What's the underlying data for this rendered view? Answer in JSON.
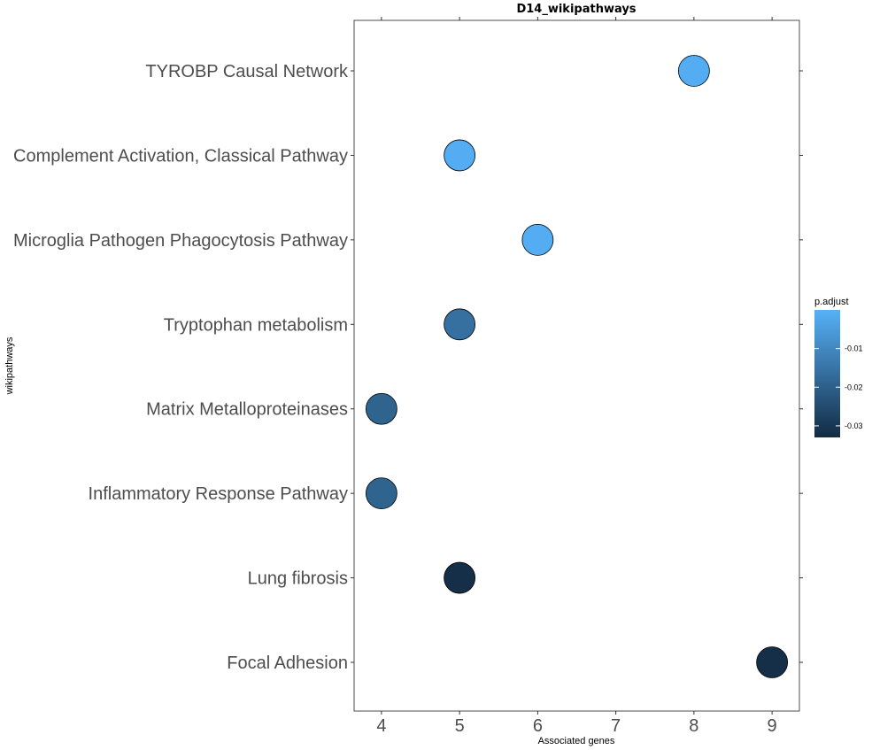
{
  "chart_data": {
    "type": "scatter",
    "title": "D14_wikipathways",
    "xlabel": "Associated genes",
    "ylabel": "wikipathways",
    "xlim": [
      3.65,
      9.35
    ],
    "xticks": [
      4,
      5,
      6,
      7,
      8,
      9
    ],
    "grid": false,
    "categories": [
      "TYROBP Causal Network",
      "Complement Activation, Classical Pathway",
      "Microglia Pathogen Phagocytosis Pathway",
      "Tryptophan metabolism",
      "Matrix Metalloproteinases",
      "Inflammatory Response Pathway",
      "Lung fibrosis",
      "Focal Adhesion"
    ],
    "points": [
      {
        "category": "TYROBP Causal Network",
        "x": 8,
        "p_adjust": -0.001
      },
      {
        "category": "Complement Activation, Classical Pathway",
        "x": 5,
        "p_adjust": -0.001
      },
      {
        "category": "Microglia Pathogen Phagocytosis Pathway",
        "x": 6,
        "p_adjust": -0.001
      },
      {
        "category": "Tryptophan metabolism",
        "x": 5,
        "p_adjust": -0.016
      },
      {
        "category": "Matrix Metalloproteinases",
        "x": 4,
        "p_adjust": -0.019
      },
      {
        "category": "Inflammatory Response Pathway",
        "x": 4,
        "p_adjust": -0.019
      },
      {
        "category": "Lung fibrosis",
        "x": 5,
        "p_adjust": -0.032
      },
      {
        "category": "Focal Adhesion",
        "x": 9,
        "p_adjust": -0.032
      }
    ],
    "color_legend": {
      "title": "p.adjust",
      "placement": "right",
      "range": [
        -0.033,
        0.0
      ],
      "ticks": [
        -0.01,
        -0.02,
        -0.03
      ],
      "tick_labels": [
        "-0.01",
        "-0.02",
        "-0.03"
      ],
      "low_color": "#132B43",
      "high_color": "#56B1F7"
    }
  }
}
